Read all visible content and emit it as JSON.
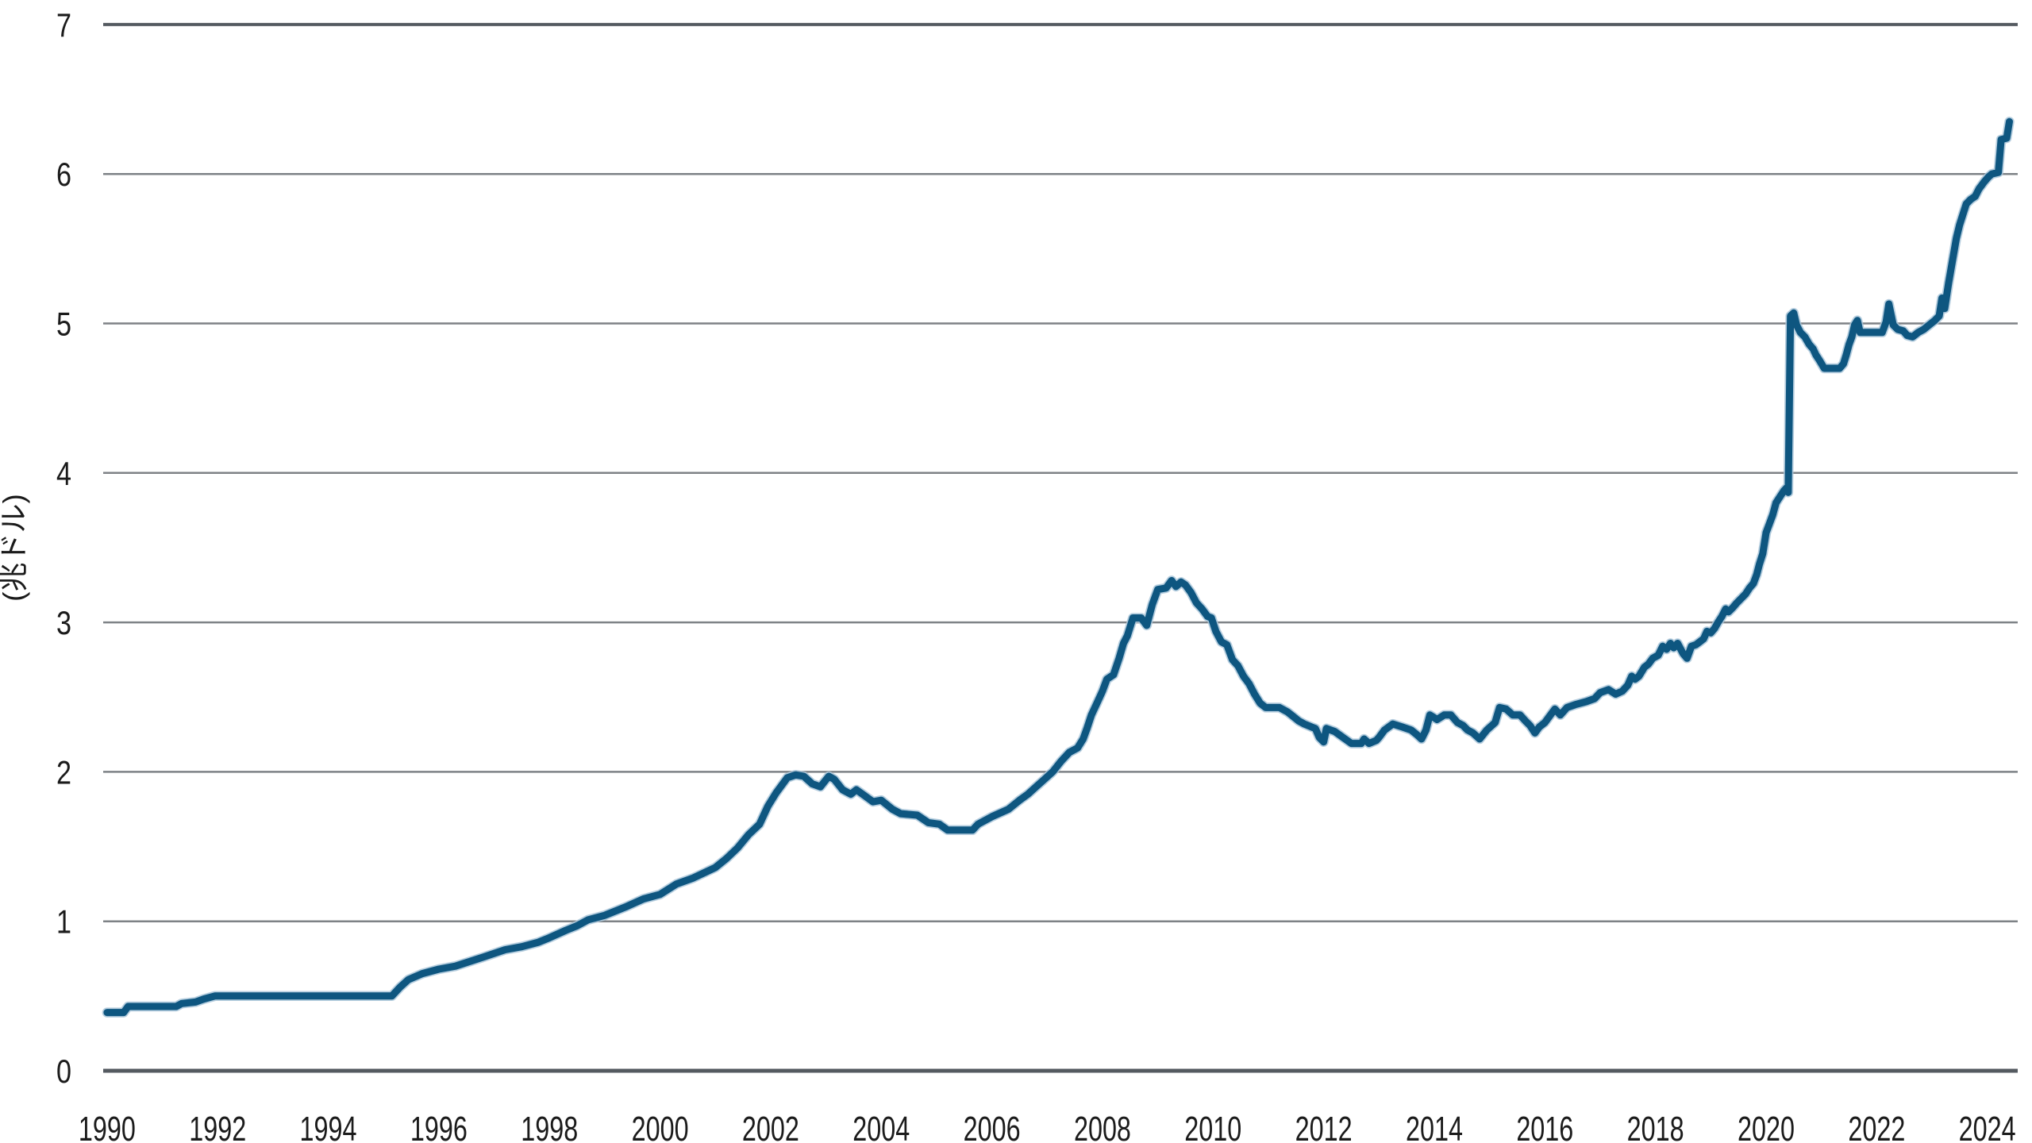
{
  "chart_data": {
    "type": "line",
    "title": "",
    "xlabel": "",
    "ylabel": "(兆ドル)",
    "x_tick_labels": [
      "1990",
      "1992",
      "1994",
      "1996",
      "1998",
      "2000",
      "2002",
      "2004",
      "2006",
      "2008",
      "2010",
      "2012",
      "2014",
      "2016",
      "2018",
      "2020",
      "2022",
      "2024"
    ],
    "x_ticks": [
      1990,
      1992,
      1994,
      1996,
      1998,
      2000,
      2002,
      2004,
      2006,
      2008,
      2010,
      2012,
      2014,
      2016,
      2018,
      2020,
      2022,
      2024
    ],
    "y_tick_labels": [
      "0",
      "1",
      "2",
      "3",
      "4",
      "5",
      "6",
      "7"
    ],
    "y_ticks": [
      0,
      1,
      2,
      3,
      4,
      5,
      6,
      7
    ],
    "x_range": [
      1989.93,
      2024.55
    ],
    "ylim": [
      0,
      7
    ],
    "grid": "horizontal-only",
    "legend_position": "none",
    "colors": {
      "line": "#0e5680",
      "line_halo": "#a9c6d9",
      "grid_inner": "#7e8286",
      "grid_frame": "#545a60",
      "text": "#1b1b1b",
      "background": "#ffffff"
    },
    "series": [
      {
        "points": [
          [
            1990.0,
            0.39
          ],
          [
            1990.3,
            0.39
          ],
          [
            1990.38,
            0.43
          ],
          [
            1991.25,
            0.43
          ],
          [
            1991.35,
            0.45
          ],
          [
            1991.6,
            0.46
          ],
          [
            1991.75,
            0.48
          ],
          [
            1991.95,
            0.5
          ],
          [
            1995.15,
            0.5
          ],
          [
            1995.3,
            0.56
          ],
          [
            1995.45,
            0.61
          ],
          [
            1995.7,
            0.65
          ],
          [
            1996.0,
            0.68
          ],
          [
            1996.3,
            0.7
          ],
          [
            1996.8,
            0.76
          ],
          [
            1997.2,
            0.81
          ],
          [
            1997.5,
            0.83
          ],
          [
            1997.8,
            0.86
          ],
          [
            1998.0,
            0.89
          ],
          [
            1998.3,
            0.94
          ],
          [
            1998.5,
            0.97
          ],
          [
            1998.7,
            1.01
          ],
          [
            1999.0,
            1.04
          ],
          [
            1999.4,
            1.1
          ],
          [
            1999.7,
            1.15
          ],
          [
            2000.0,
            1.18
          ],
          [
            2000.3,
            1.25
          ],
          [
            2000.6,
            1.29
          ],
          [
            2001.0,
            1.36
          ],
          [
            2001.2,
            1.42
          ],
          [
            2001.4,
            1.49
          ],
          [
            2001.6,
            1.58
          ],
          [
            2001.8,
            1.65
          ],
          [
            2001.95,
            1.77
          ],
          [
            2002.1,
            1.86
          ],
          [
            2002.3,
            1.96
          ],
          [
            2002.45,
            1.98
          ],
          [
            2002.6,
            1.97
          ],
          [
            2002.75,
            1.92
          ],
          [
            2002.9,
            1.9
          ],
          [
            2003.05,
            1.97
          ],
          [
            2003.15,
            1.95
          ],
          [
            2003.3,
            1.88
          ],
          [
            2003.45,
            1.85
          ],
          [
            2003.55,
            1.88
          ],
          [
            2003.7,
            1.84
          ],
          [
            2003.85,
            1.8
          ],
          [
            2004.0,
            1.81
          ],
          [
            2004.2,
            1.75
          ],
          [
            2004.35,
            1.72
          ],
          [
            2004.65,
            1.71
          ],
          [
            2004.85,
            1.66
          ],
          [
            2005.05,
            1.65
          ],
          [
            2005.2,
            1.61
          ],
          [
            2005.65,
            1.61
          ],
          [
            2005.75,
            1.65
          ],
          [
            2006.0,
            1.7
          ],
          [
            2006.3,
            1.75
          ],
          [
            2006.5,
            1.81
          ],
          [
            2006.65,
            1.85
          ],
          [
            2006.8,
            1.9
          ],
          [
            2006.95,
            1.95
          ],
          [
            2007.1,
            2.0
          ],
          [
            2007.25,
            2.07
          ],
          [
            2007.4,
            2.13
          ],
          [
            2007.55,
            2.16
          ],
          [
            2007.65,
            2.22
          ],
          [
            2007.72,
            2.29
          ],
          [
            2007.8,
            2.38
          ],
          [
            2007.9,
            2.46
          ],
          [
            2008.0,
            2.54
          ],
          [
            2008.08,
            2.62
          ],
          [
            2008.2,
            2.65
          ],
          [
            2008.3,
            2.76
          ],
          [
            2008.38,
            2.86
          ],
          [
            2008.45,
            2.91
          ],
          [
            2008.55,
            3.03
          ],
          [
            2008.7,
            3.03
          ],
          [
            2008.8,
            2.98
          ],
          [
            2008.9,
            3.12
          ],
          [
            2009.0,
            3.22
          ],
          [
            2009.15,
            3.23
          ],
          [
            2009.25,
            3.28
          ],
          [
            2009.33,
            3.24
          ],
          [
            2009.42,
            3.27
          ],
          [
            2009.5,
            3.25
          ],
          [
            2009.6,
            3.2
          ],
          [
            2009.7,
            3.13
          ],
          [
            2009.8,
            3.09
          ],
          [
            2009.9,
            3.04
          ],
          [
            2009.97,
            3.03
          ],
          [
            2010.05,
            2.94
          ],
          [
            2010.15,
            2.87
          ],
          [
            2010.25,
            2.85
          ],
          [
            2010.35,
            2.75
          ],
          [
            2010.45,
            2.71
          ],
          [
            2010.55,
            2.64
          ],
          [
            2010.65,
            2.59
          ],
          [
            2010.75,
            2.52
          ],
          [
            2010.85,
            2.46
          ],
          [
            2010.95,
            2.43
          ],
          [
            2011.2,
            2.43
          ],
          [
            2011.35,
            2.4
          ],
          [
            2011.45,
            2.37
          ],
          [
            2011.55,
            2.34
          ],
          [
            2011.65,
            2.32
          ],
          [
            2011.78,
            2.3
          ],
          [
            2011.85,
            2.29
          ],
          [
            2011.92,
            2.23
          ],
          [
            2012.0,
            2.2
          ],
          [
            2012.05,
            2.29
          ],
          [
            2012.2,
            2.27
          ],
          [
            2012.35,
            2.23
          ],
          [
            2012.5,
            2.19
          ],
          [
            2012.68,
            2.19
          ],
          [
            2012.73,
            2.22
          ],
          [
            2012.82,
            2.19
          ],
          [
            2012.95,
            2.21
          ],
          [
            2013.0,
            2.23
          ],
          [
            2013.1,
            2.28
          ],
          [
            2013.25,
            2.32
          ],
          [
            2013.42,
            2.3
          ],
          [
            2013.58,
            2.28
          ],
          [
            2013.68,
            2.25
          ],
          [
            2013.77,
            2.22
          ],
          [
            2013.85,
            2.28
          ],
          [
            2013.92,
            2.38
          ],
          [
            2014.05,
            2.35
          ],
          [
            2014.18,
            2.38
          ],
          [
            2014.3,
            2.38
          ],
          [
            2014.42,
            2.33
          ],
          [
            2014.52,
            2.31
          ],
          [
            2014.6,
            2.28
          ],
          [
            2014.7,
            2.26
          ],
          [
            2014.82,
            2.22
          ],
          [
            2014.95,
            2.28
          ],
          [
            2015.1,
            2.33
          ],
          [
            2015.18,
            2.43
          ],
          [
            2015.3,
            2.42
          ],
          [
            2015.42,
            2.38
          ],
          [
            2015.55,
            2.38
          ],
          [
            2015.65,
            2.34
          ],
          [
            2015.73,
            2.31
          ],
          [
            2015.82,
            2.26
          ],
          [
            2015.9,
            2.3
          ],
          [
            2016.0,
            2.33
          ],
          [
            2016.1,
            2.38
          ],
          [
            2016.18,
            2.42
          ],
          [
            2016.28,
            2.38
          ],
          [
            2016.4,
            2.43
          ],
          [
            2016.55,
            2.45
          ],
          [
            2016.75,
            2.47
          ],
          [
            2016.9,
            2.49
          ],
          [
            2017.0,
            2.53
          ],
          [
            2017.15,
            2.55
          ],
          [
            2017.28,
            2.52
          ],
          [
            2017.4,
            2.54
          ],
          [
            2017.5,
            2.58
          ],
          [
            2017.57,
            2.64
          ],
          [
            2017.63,
            2.62
          ],
          [
            2017.7,
            2.64
          ],
          [
            2017.8,
            2.7
          ],
          [
            2017.87,
            2.72
          ],
          [
            2017.95,
            2.76
          ],
          [
            2018.05,
            2.78
          ],
          [
            2018.13,
            2.84
          ],
          [
            2018.2,
            2.82
          ],
          [
            2018.27,
            2.86
          ],
          [
            2018.33,
            2.83
          ],
          [
            2018.4,
            2.86
          ],
          [
            2018.5,
            2.79
          ],
          [
            2018.57,
            2.76
          ],
          [
            2018.65,
            2.84
          ],
          [
            2018.73,
            2.85
          ],
          [
            2018.8,
            2.87
          ],
          [
            2018.87,
            2.89
          ],
          [
            2018.93,
            2.94
          ],
          [
            2019.0,
            2.93
          ],
          [
            2019.07,
            2.96
          ],
          [
            2019.13,
            3.0
          ],
          [
            2019.2,
            3.04
          ],
          [
            2019.27,
            3.09
          ],
          [
            2019.32,
            3.07
          ],
          [
            2019.4,
            3.1
          ],
          [
            2019.47,
            3.13
          ],
          [
            2019.55,
            3.16
          ],
          [
            2019.63,
            3.19
          ],
          [
            2019.7,
            3.23
          ],
          [
            2019.77,
            3.26
          ],
          [
            2019.83,
            3.32
          ],
          [
            2019.88,
            3.39
          ],
          [
            2019.94,
            3.46
          ],
          [
            2020.0,
            3.6
          ],
          [
            2020.06,
            3.66
          ],
          [
            2020.12,
            3.72
          ],
          [
            2020.18,
            3.8
          ],
          [
            2020.25,
            3.84
          ],
          [
            2020.32,
            3.88
          ],
          [
            2020.37,
            3.9
          ],
          [
            2020.4,
            3.87
          ],
          [
            2020.44,
            5.05
          ],
          [
            2020.5,
            5.07
          ],
          [
            2020.55,
            4.99
          ],
          [
            2020.62,
            4.94
          ],
          [
            2020.7,
            4.91
          ],
          [
            2020.78,
            4.86
          ],
          [
            2020.85,
            4.83
          ],
          [
            2020.9,
            4.79
          ],
          [
            2020.97,
            4.75
          ],
          [
            2021.05,
            4.7
          ],
          [
            2021.33,
            4.7
          ],
          [
            2021.4,
            4.73
          ],
          [
            2021.45,
            4.79
          ],
          [
            2021.5,
            4.86
          ],
          [
            2021.55,
            4.91
          ],
          [
            2021.6,
            4.99
          ],
          [
            2021.65,
            5.02
          ],
          [
            2021.7,
            4.94
          ],
          [
            2022.1,
            4.94
          ],
          [
            2022.17,
            5.01
          ],
          [
            2022.22,
            5.13
          ],
          [
            2022.3,
            4.99
          ],
          [
            2022.38,
            4.96
          ],
          [
            2022.48,
            4.95
          ],
          [
            2022.55,
            4.92
          ],
          [
            2022.65,
            4.91
          ],
          [
            2022.75,
            4.94
          ],
          [
            2022.85,
            4.96
          ],
          [
            2022.95,
            4.99
          ],
          [
            2023.05,
            5.02
          ],
          [
            2023.13,
            5.05
          ],
          [
            2023.18,
            5.17
          ],
          [
            2023.23,
            5.1
          ],
          [
            2023.3,
            5.27
          ],
          [
            2023.37,
            5.42
          ],
          [
            2023.44,
            5.57
          ],
          [
            2023.5,
            5.66
          ],
          [
            2023.56,
            5.73
          ],
          [
            2023.62,
            5.8
          ],
          [
            2023.7,
            5.83
          ],
          [
            2023.78,
            5.85
          ],
          [
            2023.85,
            5.9
          ],
          [
            2023.95,
            5.95
          ],
          [
            2024.02,
            5.98
          ],
          [
            2024.08,
            6.0
          ],
          [
            2024.2,
            6.01
          ],
          [
            2024.25,
            6.23
          ],
          [
            2024.35,
            6.24
          ],
          [
            2024.4,
            6.35
          ]
        ]
      }
    ]
  },
  "layout_note": ""
}
